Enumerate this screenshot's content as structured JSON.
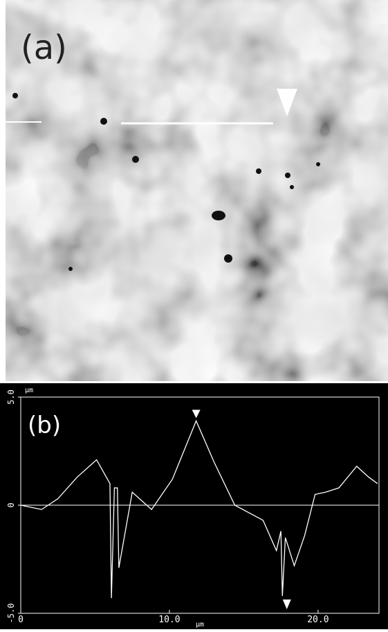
{
  "panel_a": {
    "label": "(a)"
  },
  "chart_data": {
    "type": "line",
    "label": "(b)",
    "y_unit": "μm",
    "x_unit": "μm",
    "x": [
      0,
      1.4,
      2.5,
      3.8,
      5.1,
      6.0,
      6.1,
      6.3,
      6.5,
      6.6,
      7.5,
      8.8,
      10.2,
      11.8,
      13.0,
      14.4,
      16.3,
      17.2,
      17.5,
      17.6,
      17.8,
      18.4,
      19.1,
      19.8,
      20.5,
      21.4,
      22.6,
      23.4,
      24.0
    ],
    "series": [
      {
        "name": null,
        "color": "#ffffff",
        "values": [
          0,
          -0.2,
          0.3,
          1.3,
          2.1,
          1.0,
          -4.3,
          0.8,
          0.8,
          -2.9,
          0.6,
          -0.2,
          1.2,
          3.9,
          2.0,
          0,
          -0.7,
          -2.1,
          -1.2,
          -4.2,
          -1.5,
          -2.8,
          -1.4,
          0.5,
          0.6,
          0.8,
          1.8,
          1.3,
          1.0
        ]
      }
    ],
    "xlim": [
      0,
      24.1
    ],
    "ylim": [
      -5,
      5
    ],
    "xticks": [
      0,
      {
        "value": 10,
        "label": "10.0"
      },
      {
        "value": 20,
        "label": "20.0"
      }
    ],
    "yticks": [
      {
        "value": 5,
        "label": "5.0"
      },
      0,
      {
        "value": -5,
        "label": "-5.0"
      }
    ]
  }
}
